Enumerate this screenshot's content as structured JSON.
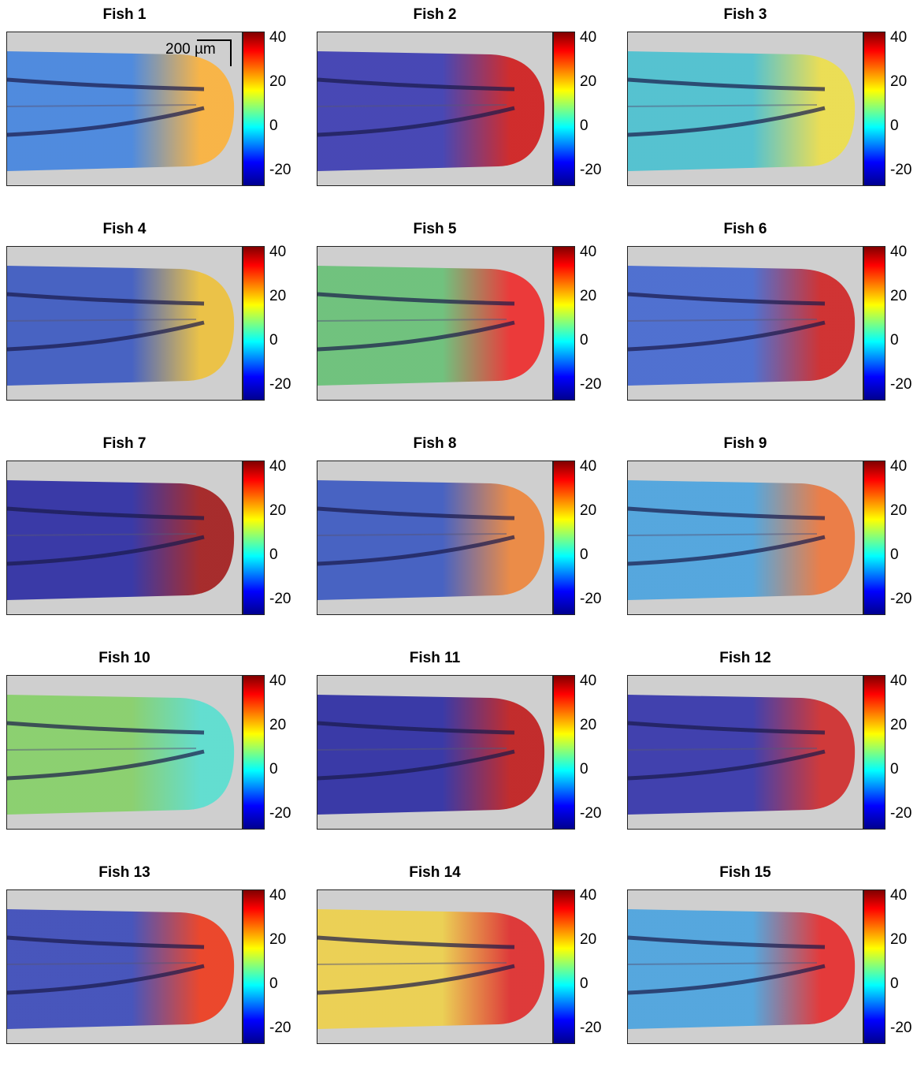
{
  "scale_label": "200 µm",
  "colorbar_ticks": [
    "40",
    "20",
    "0",
    "-20"
  ],
  "panels": [
    {
      "title": "Fish 1",
      "tip": "#ffb030",
      "body": "#3a7fe0"
    },
    {
      "title": "Fish 2",
      "tip": "#d01010",
      "body": "#3030b0"
    },
    {
      "title": "Fish 3",
      "tip": "#f0e040",
      "body": "#40c0d0"
    },
    {
      "title": "Fish 4",
      "tip": "#f0c030",
      "body": "#3050c0"
    },
    {
      "title": "Fish 5",
      "tip": "#f02020",
      "body": "#60c070"
    },
    {
      "title": "Fish 6",
      "tip": "#d01818",
      "body": "#3a60d0"
    },
    {
      "title": "Fish 7",
      "tip": "#a01010",
      "body": "#2020a0"
    },
    {
      "title": "Fish 8",
      "tip": "#f08030",
      "body": "#3050c0"
    },
    {
      "title": "Fish 9",
      "tip": "#f07030",
      "body": "#40a0e0"
    },
    {
      "title": "Fish 10",
      "tip": "#50e0d0",
      "body": "#80d060"
    },
    {
      "title": "Fish 11",
      "tip": "#c01010",
      "body": "#2020a0"
    },
    {
      "title": "Fish 12",
      "tip": "#d02020",
      "body": "#2828a8"
    },
    {
      "title": "Fish 13",
      "tip": "#f03010",
      "body": "#3040b8"
    },
    {
      "title": "Fish 14",
      "tip": "#e02020",
      "body": "#f0d040"
    },
    {
      "title": "Fish 15",
      "tip": "#e82020",
      "body": "#40a0e0"
    }
  ]
}
